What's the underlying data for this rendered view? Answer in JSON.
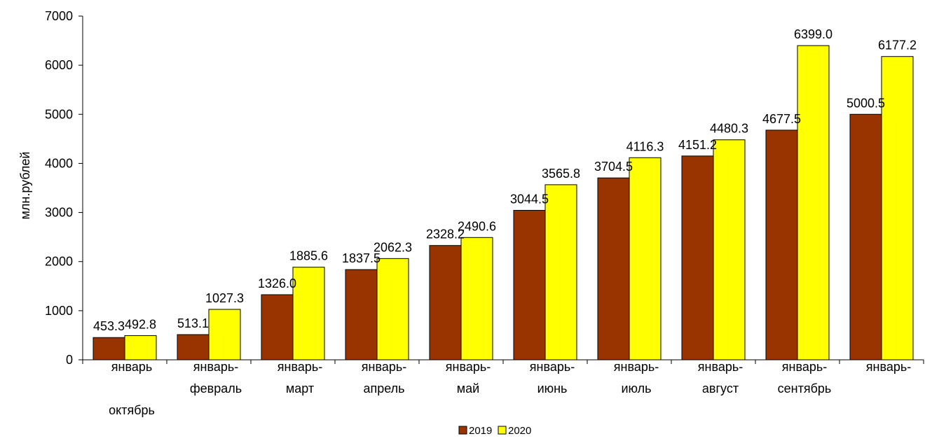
{
  "chart_data": {
    "type": "bar",
    "ylabel": "млн.рублей",
    "ylim": [
      0,
      7000
    ],
    "yticks": [
      0,
      1000,
      2000,
      3000,
      4000,
      5000,
      6000,
      7000
    ],
    "categories": [
      [
        "январь",
        "",
        "октябрь"
      ],
      [
        "январь-",
        "февраль"
      ],
      [
        "январь-",
        "март"
      ],
      [
        "январь-",
        "апрель"
      ],
      [
        "январь-",
        "май"
      ],
      [
        "январь-",
        "июнь"
      ],
      [
        "январь-",
        "июль"
      ],
      [
        "январь-",
        "август"
      ],
      [
        "январь-",
        "сентябрь"
      ],
      [
        "январь-",
        ""
      ]
    ],
    "series": [
      {
        "name": "2019",
        "color": "#993300",
        "values": [
          453.3,
          513.1,
          1326.0,
          1837.5,
          2328.2,
          3044.5,
          3704.5,
          4151.2,
          4677.5,
          5000.5
        ],
        "labels": [
          "453.3",
          "513.1",
          "1326.0",
          "1837.5",
          "2328.2",
          "3044.5",
          "3704.5",
          "4151.2",
          "4677.5",
          "5000.5"
        ]
      },
      {
        "name": "2020",
        "color": "#FFFF00",
        "values": [
          492.8,
          1027.3,
          1885.6,
          2062.3,
          2490.6,
          3565.8,
          4116.3,
          4480.3,
          6399.0,
          6177.2
        ],
        "labels": [
          "492.8",
          "1027.3",
          "1885.6",
          "2062.3",
          "2490.6",
          "3565.8",
          "4116.3",
          "4480.3",
          "6399.0",
          "6177.2"
        ]
      }
    ],
    "legend_position": "bottom",
    "grid": false
  }
}
